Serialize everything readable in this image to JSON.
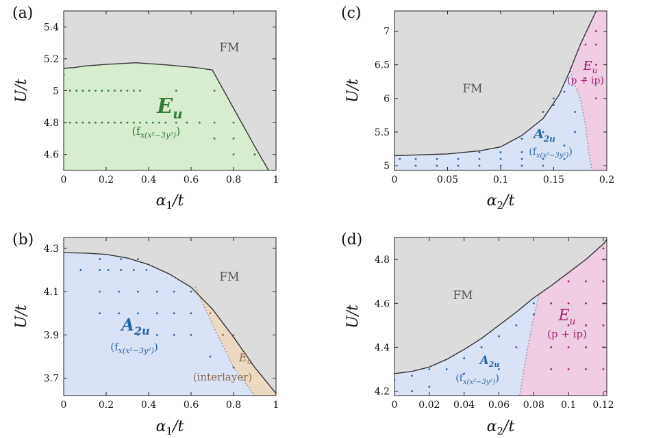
{
  "colors": {
    "fm": "#dcdcdc",
    "green": "#d8edcf",
    "blue": "#dae2f6",
    "pink": "#efcde3",
    "tan": "#ecd9c4",
    "green_text": "#2e7d3a",
    "blue_text": "#2668a8",
    "pink_text": "#a3236f",
    "tan_text": "#8a6a4d",
    "boundary": "#333333"
  },
  "chart_data": [
    {
      "id": "a",
      "panel_label": "(a)",
      "type": "scatter",
      "xlabel": "α1/t",
      "ylabel": "U/t",
      "xlim": [
        0,
        1
      ],
      "ylim": [
        4.5,
        5.5
      ],
      "xticks": [
        0,
        0.2,
        0.4,
        0.6,
        0.8,
        1
      ],
      "xtick_labels": [
        "0",
        "0.2",
        "0.4",
        "0.6",
        "0.8",
        "1"
      ],
      "yticks": [
        4.6,
        4.8,
        5,
        5.2,
        5.4
      ],
      "ytick_labels": [
        "4.6",
        "4.8",
        "5",
        "5.2",
        "5.4"
      ],
      "fm_label": "FM",
      "phase_label": {
        "main": "E",
        "sub": "u",
        "extra": "(f",
        "extra_sub": "x(x²−3y²)",
        "extra_close": ")"
      },
      "boundary": [
        [
          0,
          5.14
        ],
        [
          0.05,
          5.145
        ],
        [
          0.1,
          5.155
        ],
        [
          0.2,
          5.165
        ],
        [
          0.34,
          5.175
        ],
        [
          0.5,
          5.16
        ],
        [
          0.62,
          5.145
        ],
        [
          0.7,
          5.13
        ],
        [
          0.8,
          4.89
        ],
        [
          0.9,
          4.65
        ],
        [
          0.965,
          4.5
        ]
      ],
      "points": [
        [
          0,
          5.1
        ],
        [
          0.03,
          5
        ],
        [
          0.06,
          5
        ],
        [
          0.09,
          5
        ],
        [
          0.12,
          5
        ],
        [
          0.15,
          5
        ],
        [
          0.18,
          5
        ],
        [
          0.21,
          5
        ],
        [
          0.24,
          5
        ],
        [
          0.27,
          5
        ],
        [
          0.3,
          5
        ],
        [
          0.33,
          5
        ],
        [
          0.36,
          5
        ],
        [
          0.53,
          5
        ],
        [
          0.71,
          5
        ],
        [
          0,
          4.8
        ],
        [
          0.03,
          4.8
        ],
        [
          0.06,
          4.8
        ],
        [
          0.09,
          4.8
        ],
        [
          0.12,
          4.8
        ],
        [
          0.15,
          4.8
        ],
        [
          0.18,
          4.8
        ],
        [
          0.21,
          4.8
        ],
        [
          0.24,
          4.8
        ],
        [
          0.27,
          4.8
        ],
        [
          0.3,
          4.8
        ],
        [
          0.33,
          4.8
        ],
        [
          0.36,
          4.8
        ],
        [
          0.39,
          4.8
        ],
        [
          0.42,
          4.8
        ],
        [
          0.45,
          4.8
        ],
        [
          0.48,
          4.8
        ],
        [
          0.53,
          4.8
        ],
        [
          0.58,
          4.8
        ],
        [
          0.64,
          4.8
        ],
        [
          0.71,
          4.8
        ],
        [
          0.8,
          4.8
        ],
        [
          0.71,
          4.7
        ],
        [
          0.8,
          4.7
        ],
        [
          0.8,
          4.6
        ],
        [
          0.9,
          4.6
        ]
      ]
    },
    {
      "id": "b",
      "panel_label": "(b)",
      "type": "scatter",
      "xlabel": "α1/t",
      "ylabel": "U/t",
      "xlim": [
        0,
        1
      ],
      "ylim": [
        3.62,
        4.35
      ],
      "xticks": [
        0,
        0.2,
        0.4,
        0.6,
        0.8,
        1
      ],
      "xtick_labels": [
        "0",
        "0.2",
        "0.4",
        "0.6",
        "0.8",
        "1"
      ],
      "yticks": [
        3.7,
        3.9,
        4.1,
        4.3
      ],
      "ytick_labels": [
        "3.7",
        "3.9",
        "4.1",
        "4.3"
      ],
      "fm_label": "FM",
      "phase_label": {
        "main": "A",
        "sub": "2u",
        "extra": "(f",
        "extra_sub": "x(x²−3y²)",
        "extra_close": ")"
      },
      "phase_label2": {
        "main": "E",
        "sub": "u",
        "extra": "(interlayer)"
      },
      "boundary": [
        [
          0,
          4.28
        ],
        [
          0.1,
          4.278
        ],
        [
          0.2,
          4.272
        ],
        [
          0.3,
          4.255
        ],
        [
          0.4,
          4.225
        ],
        [
          0.5,
          4.18
        ],
        [
          0.6,
          4.12
        ],
        [
          0.7,
          4.02
        ],
        [
          0.8,
          3.89
        ],
        [
          0.9,
          3.75
        ],
        [
          1,
          3.63
        ]
      ],
      "inner_boundary": [
        [
          0.62,
          4.12
        ],
        [
          0.7,
          3.95
        ],
        [
          0.8,
          3.75
        ],
        [
          0.9,
          3.62
        ]
      ],
      "points": [
        [
          0.08,
          4.2
        ],
        [
          0.17,
          4.25
        ],
        [
          0.17,
          4.2
        ],
        [
          0.21,
          4.2
        ],
        [
          0.27,
          4.2
        ],
        [
          0.33,
          4.2
        ],
        [
          0.39,
          4.2
        ],
        [
          0.27,
          4.25
        ],
        [
          0.35,
          4.25
        ],
        [
          0.17,
          4.1
        ],
        [
          0.26,
          4.1
        ],
        [
          0.35,
          4.1
        ],
        [
          0.44,
          4.1
        ],
        [
          0.52,
          4.1
        ],
        [
          0.6,
          4.1
        ],
        [
          0.17,
          4
        ],
        [
          0.26,
          4
        ],
        [
          0.35,
          4
        ],
        [
          0.44,
          4
        ],
        [
          0.52,
          4
        ],
        [
          0.6,
          4
        ],
        [
          0.35,
          3.9
        ],
        [
          0.44,
          3.9
        ],
        [
          0.52,
          3.9
        ],
        [
          0.6,
          3.9
        ],
        [
          0.69,
          3.8
        ],
        [
          0.8,
          3.75
        ]
      ],
      "points2": [
        [
          0.62,
          4.1
        ],
        [
          0.69,
          4
        ],
        [
          0.75,
          3.9
        ],
        [
          0.8,
          3.9
        ],
        [
          0.85,
          3.8
        ]
      ]
    },
    {
      "id": "c",
      "panel_label": "(c)",
      "type": "scatter",
      "xlabel": "α2/t",
      "ylabel": "U/t",
      "xlim": [
        0,
        0.2
      ],
      "ylim": [
        4.93,
        7.3
      ],
      "xticks": [
        0,
        0.05,
        0.1,
        0.15,
        0.2
      ],
      "xtick_labels": [
        "0",
        "0.05",
        "0.1",
        "0.15",
        "0.2"
      ],
      "yticks": [
        5,
        5.5,
        6,
        6.5,
        7
      ],
      "ytick_labels": [
        "5",
        "5.5",
        "6",
        "6.5",
        "7"
      ],
      "fm_label": "FM",
      "phase_label": {
        "main": "A",
        "sub": "2u",
        "extra": "(f",
        "extra_sub": "x(x²−3y²)",
        "extra_close": ")"
      },
      "phase_label2": {
        "main": "E",
        "sub": "u",
        "extra": "(p + ip)"
      },
      "boundary": [
        [
          0,
          5.15
        ],
        [
          0.02,
          5.16
        ],
        [
          0.05,
          5.175
        ],
        [
          0.08,
          5.22
        ],
        [
          0.1,
          5.28
        ],
        [
          0.12,
          5.45
        ],
        [
          0.14,
          5.7
        ],
        [
          0.155,
          6.05
        ],
        [
          0.165,
          6.4
        ],
        [
          0.175,
          6.8
        ],
        [
          0.19,
          7.3
        ]
      ],
      "inner_boundary": [
        [
          0.165,
          6.45
        ],
        [
          0.17,
          6.2
        ],
        [
          0.175,
          6
        ],
        [
          0.18,
          5.6
        ],
        [
          0.183,
          5.2
        ],
        [
          0.186,
          4.93
        ]
      ],
      "points": [
        [
          0.005,
          5.1
        ],
        [
          0.02,
          5.1
        ],
        [
          0.02,
          5
        ],
        [
          0.04,
          5.1
        ],
        [
          0.04,
          5
        ],
        [
          0.06,
          5.1
        ],
        [
          0.06,
          5
        ],
        [
          0.08,
          5.2
        ],
        [
          0.08,
          5.1
        ],
        [
          0.08,
          5
        ],
        [
          0.1,
          5.2
        ],
        [
          0.1,
          5.1
        ],
        [
          0.1,
          5
        ],
        [
          0.12,
          5.4
        ],
        [
          0.12,
          5.2
        ],
        [
          0.12,
          5.1
        ],
        [
          0.12,
          5
        ],
        [
          0.14,
          5.5
        ],
        [
          0.14,
          5.1
        ],
        [
          0.14,
          5
        ],
        [
          0.14,
          5.8
        ],
        [
          0.15,
          5.9
        ],
        [
          0.15,
          6
        ],
        [
          0.16,
          6.1
        ],
        [
          0.16,
          5.3
        ],
        [
          0.16,
          5.1
        ],
        [
          0.17,
          5.8
        ],
        [
          0.17,
          5.5
        ]
      ],
      "points2": [
        [
          0.18,
          6.8
        ],
        [
          0.19,
          6.8
        ],
        [
          0.19,
          7
        ],
        [
          0.18,
          6.5
        ],
        [
          0.19,
          6.5
        ],
        [
          0.18,
          6.3
        ],
        [
          0.19,
          6
        ]
      ]
    },
    {
      "id": "d",
      "panel_label": "(d)",
      "type": "scatter",
      "xlabel": "α2/t",
      "ylabel": "U/t",
      "xlim": [
        0,
        0.122
      ],
      "ylim": [
        4.18,
        4.9
      ],
      "xticks": [
        0,
        0.02,
        0.04,
        0.06,
        0.08,
        0.1,
        0.12
      ],
      "xtick_labels": [
        "0",
        "0.02",
        "0.04",
        "0.06",
        "0.08",
        "0.1",
        "0.12"
      ],
      "yticks": [
        4.2,
        4.4,
        4.6,
        4.8
      ],
      "ytick_labels": [
        "4.2",
        "4.4",
        "4.6",
        "4.8"
      ],
      "fm_label": "FM",
      "phase_label": {
        "main": "A",
        "sub": "2u",
        "extra": "(f",
        "extra_sub": "x(x²−3y²)",
        "extra_close": ")"
      },
      "phase_label2": {
        "main": "E",
        "sub": "u",
        "extra": "(p + ip)"
      },
      "boundary": [
        [
          0,
          4.28
        ],
        [
          0.005,
          4.285
        ],
        [
          0.01,
          4.29
        ],
        [
          0.02,
          4.31
        ],
        [
          0.03,
          4.345
        ],
        [
          0.04,
          4.39
        ],
        [
          0.05,
          4.44
        ],
        [
          0.06,
          4.5
        ],
        [
          0.07,
          4.56
        ],
        [
          0.08,
          4.625
        ],
        [
          0.09,
          4.68
        ],
        [
          0.1,
          4.74
        ],
        [
          0.11,
          4.8
        ],
        [
          0.12,
          4.87
        ],
        [
          0.122,
          4.89
        ]
      ],
      "inner_boundary": [
        [
          0.083,
          4.64
        ],
        [
          0.079,
          4.5
        ],
        [
          0.075,
          4.33
        ],
        [
          0.072,
          4.18
        ]
      ],
      "points": [
        [
          0,
          4.25
        ],
        [
          0.01,
          4.27
        ],
        [
          0.02,
          4.3
        ],
        [
          0.03,
          4.3
        ],
        [
          0.04,
          4.35
        ],
        [
          0.05,
          4.4
        ],
        [
          0.06,
          4.45
        ],
        [
          0.07,
          4.5
        ],
        [
          0.01,
          4.2
        ],
        [
          0.02,
          4.22
        ],
        [
          0.04,
          4.28
        ],
        [
          0.06,
          4.3
        ],
        [
          0.07,
          4.4
        ],
        [
          0.08,
          4.55
        ],
        [
          0.08,
          4.6
        ]
      ],
      "points2": [
        [
          0.09,
          4.6
        ],
        [
          0.1,
          4.6
        ],
        [
          0.11,
          4.6
        ],
        [
          0.12,
          4.6
        ],
        [
          0.09,
          4.4
        ],
        [
          0.1,
          4.4
        ],
        [
          0.11,
          4.4
        ],
        [
          0.12,
          4.4
        ],
        [
          0.09,
          4.3
        ],
        [
          0.1,
          4.3
        ],
        [
          0.11,
          4.3
        ],
        [
          0.12,
          4.3
        ],
        [
          0.1,
          4.7
        ],
        [
          0.11,
          4.7
        ],
        [
          0.12,
          4.7
        ],
        [
          0.12,
          4.8
        ],
        [
          0.12,
          4.85
        ],
        [
          0.1,
          4.5
        ],
        [
          0.11,
          4.5
        ],
        [
          0.12,
          4.5
        ]
      ]
    }
  ]
}
